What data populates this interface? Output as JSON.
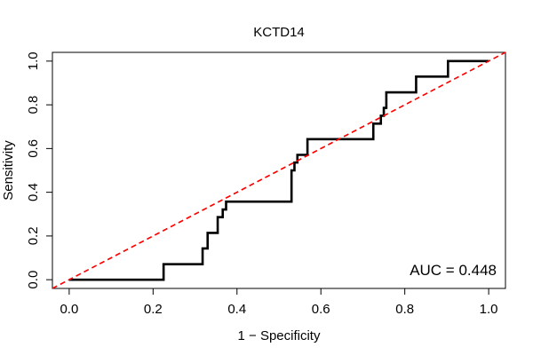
{
  "chart_data": {
    "type": "line",
    "title": "KCTD14",
    "xlabel": "1 − Specificity",
    "ylabel": "Sensitivity",
    "xlim": [
      -0.04,
      1.04
    ],
    "ylim": [
      -0.04,
      1.04
    ],
    "x_ticks": [
      "0.0",
      "0.2",
      "0.4",
      "0.6",
      "0.8",
      "1.0"
    ],
    "y_ticks": [
      "0.0",
      "0.2",
      "0.4",
      "0.6",
      "0.8",
      "1.0"
    ],
    "annotation": "AUC = 0.448",
    "grid": false,
    "series": [
      {
        "kind": "roc-curve",
        "color": "#000000",
        "x": [
          0.0,
          0.225,
          0.225,
          0.318,
          0.318,
          0.33,
          0.33,
          0.354,
          0.354,
          0.366,
          0.366,
          0.374,
          0.374,
          0.53,
          0.53,
          0.537,
          0.537,
          0.544,
          0.544,
          0.568,
          0.568,
          0.725,
          0.725,
          0.743,
          0.743,
          0.75,
          0.75,
          0.756,
          0.756,
          0.827,
          0.827,
          0.903,
          0.903,
          1.0
        ],
        "y": [
          0.0,
          0.0,
          0.071,
          0.071,
          0.143,
          0.143,
          0.214,
          0.214,
          0.286,
          0.286,
          0.321,
          0.321,
          0.357,
          0.357,
          0.5,
          0.5,
          0.536,
          0.536,
          0.571,
          0.571,
          0.643,
          0.643,
          0.714,
          0.714,
          0.75,
          0.75,
          0.786,
          0.786,
          0.857,
          0.857,
          0.929,
          0.929,
          1.0,
          1.0
        ]
      },
      {
        "kind": "reference-diagonal",
        "color": "#ff0000",
        "x": [
          -0.04,
          1.04
        ],
        "y": [
          -0.04,
          1.04
        ]
      }
    ]
  }
}
